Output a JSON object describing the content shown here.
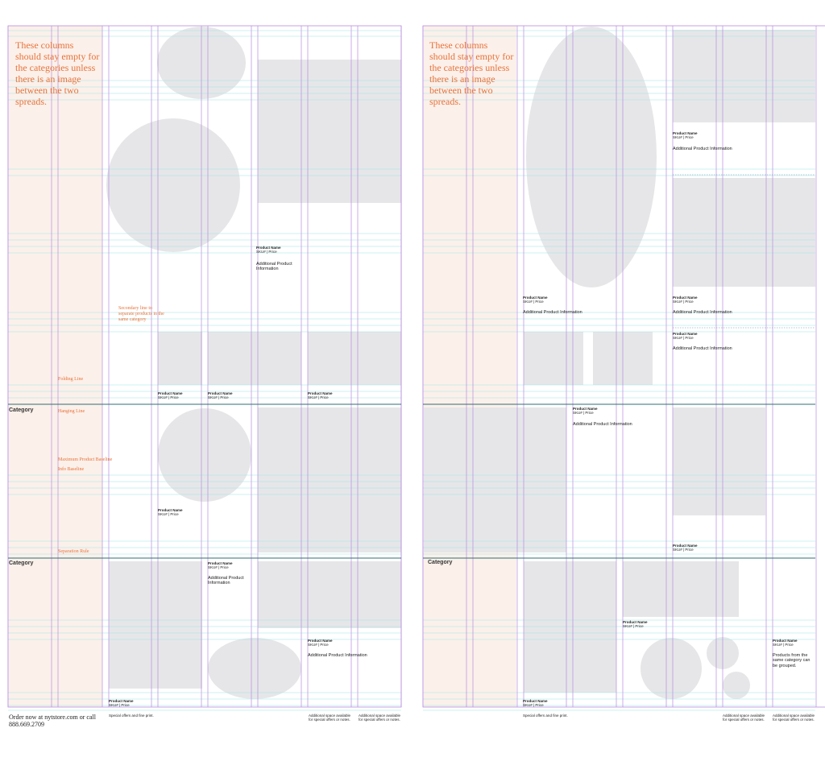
{
  "note": "These columns should stay empty for the categories unless there is an image between the two spreads.",
  "guides": {
    "secondary": "Secondary line to separate products in the same category",
    "folding": "Folding Line",
    "hanging": "Hanging Line",
    "max_baseline": "Maximum Product Baseline",
    "info_baseline": "Info Baseline",
    "separation": "Separation Rule"
  },
  "categories": [
    "Category",
    "Category",
    "Category"
  ],
  "products": [
    {
      "name": "Product Name",
      "sku": "SKU# | Price",
      "info": "Additional Product Information"
    },
    {
      "name": "Product Name",
      "sku": "SKU# | Price"
    },
    {
      "name": "Product Name",
      "sku": "SKU# | Price"
    },
    {
      "name": "Product Name",
      "sku": "SKU# | Price"
    },
    {
      "name": "Product Name",
      "sku": "SKU# | Price"
    },
    {
      "name": "Product Name",
      "sku": "SKU# | Price",
      "info": "Additional Product Information"
    },
    {
      "name": "Product Name",
      "sku": "SKU# | Price",
      "info": "Additional Product Information"
    },
    {
      "name": "Product Name",
      "sku": "SKU# | Price"
    },
    {
      "name": "Product Name",
      "sku": "SKU# | Price",
      "info": "Additional Product Information"
    },
    {
      "name": "Product Name",
      "sku": "SKU# | Price",
      "info": "Additional Product Information"
    },
    {
      "name": "Product Name",
      "sku": "SKU# | Price",
      "info": "Additional Product Information"
    },
    {
      "name": "Product Name",
      "sku": "SKU# | Price",
      "info": "Additional Product Information"
    },
    {
      "name": "Product Name",
      "sku": "SKU# | Price",
      "info": "Additional Product Information"
    },
    {
      "name": "Product Name",
      "sku": "SKU# | Price"
    },
    {
      "name": "Product Name",
      "sku": "SKU# | Price"
    },
    {
      "name": "Product Name",
      "sku": "SKU# | Price",
      "info": "Products from the same category can be grouped."
    },
    {
      "name": "Product Name",
      "sku": "SKU# | Price"
    }
  ],
  "footer": {
    "order": "Order now at nytstore.com or call 888.669.2709",
    "fine_print": [
      "Special offers and fine print.",
      "Special offers and fine print."
    ],
    "extra": [
      "Additional space available for special offers or notes.",
      "Additional space available for special offers or notes.",
      "Additional space available for special offers or notes.",
      "Additional space available for special offers or notes."
    ]
  }
}
